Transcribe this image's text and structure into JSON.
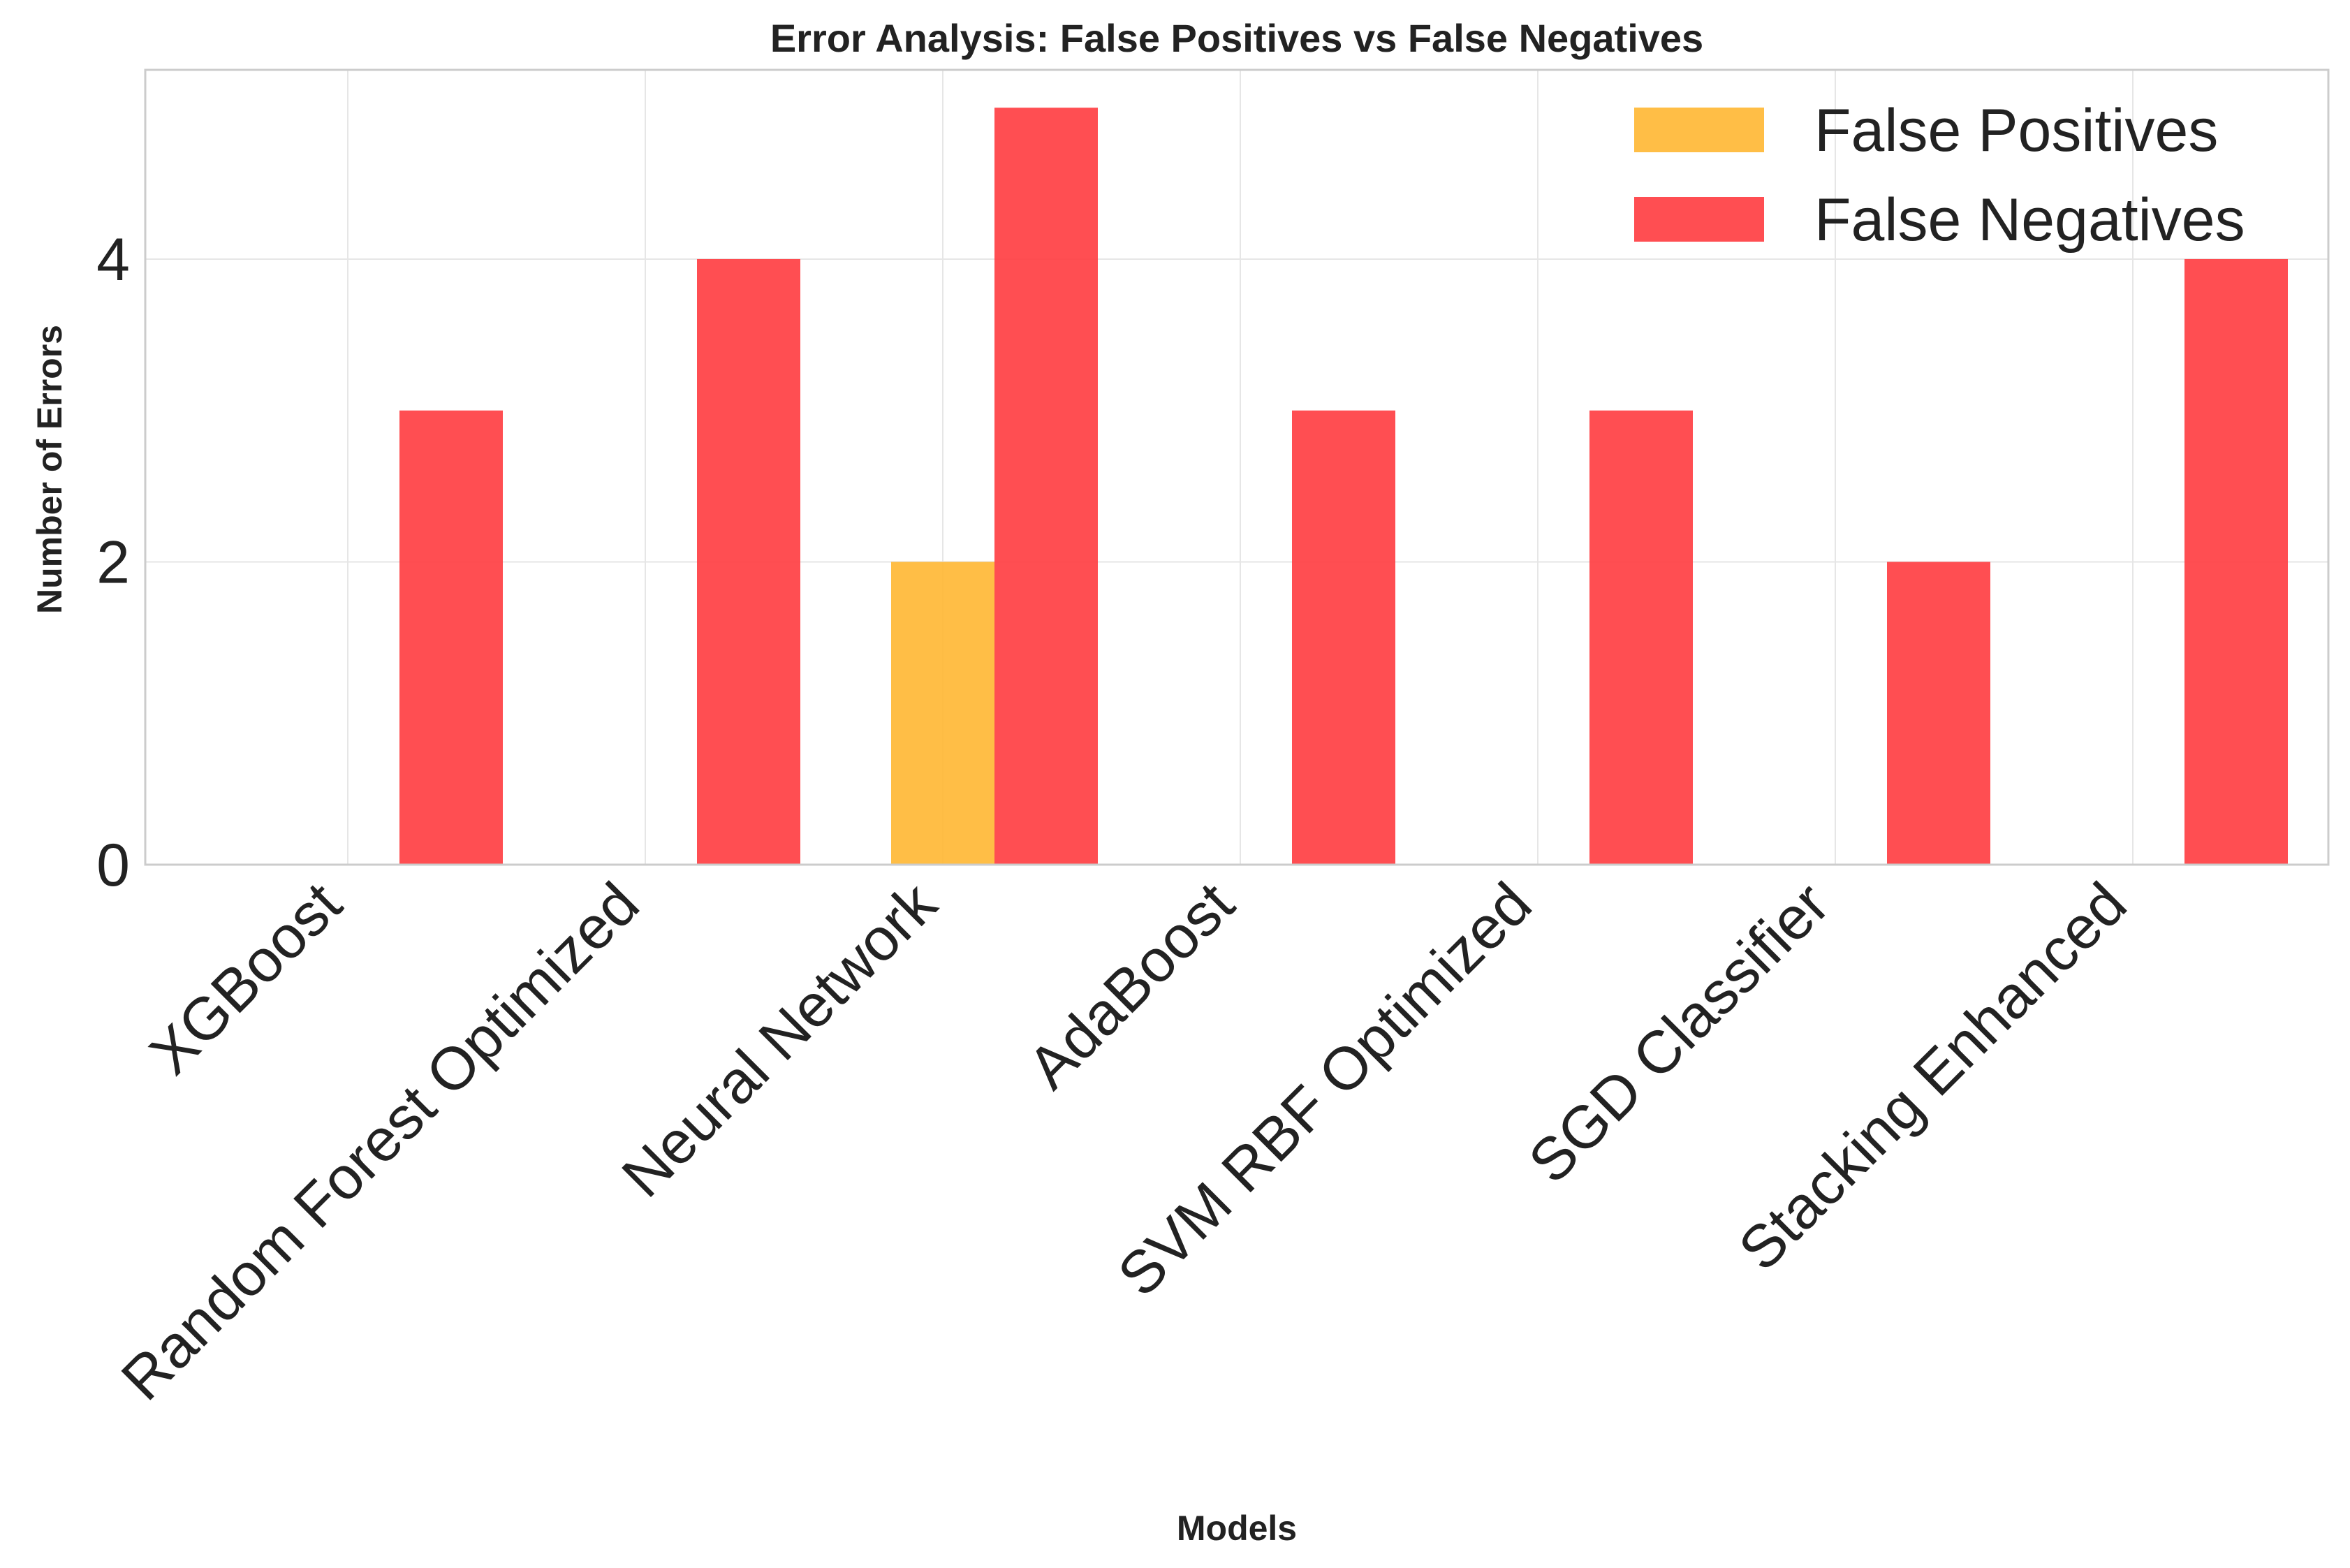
{
  "chart_data": {
    "type": "bar",
    "title": "Error Analysis: False Positives vs False Negatives",
    "xlabel": "Models",
    "ylabel": "Number of Errors",
    "categories": [
      "XGBoost",
      "Random Forest Optimized",
      "Neural Network",
      "AdaBoost",
      "SVM RBF Optimized",
      "SGD Classifier",
      "Stacking Enhanced"
    ],
    "series": [
      {
        "name": "False Positives",
        "values": [
          0,
          0,
          2,
          0,
          0,
          0,
          0
        ],
        "color": "#FFB732"
      },
      {
        "name": "False Negatives",
        "values": [
          3,
          4,
          5,
          3,
          3,
          2,
          4
        ],
        "color": "#FF3B3F"
      }
    ],
    "ylim": [
      0,
      5.25
    ],
    "yticks": [
      0,
      2,
      4
    ],
    "grid": true,
    "legend_position": "top-right"
  }
}
